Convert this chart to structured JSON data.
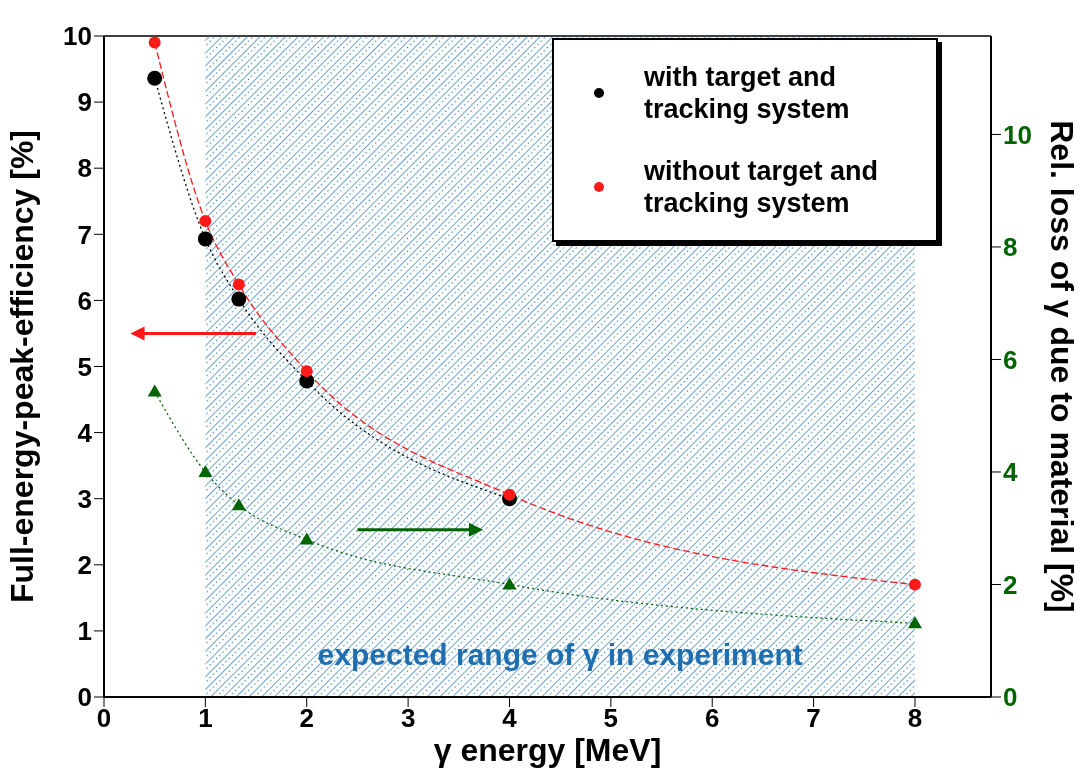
{
  "chart_data": {
    "type": "line",
    "xlabel": "γ energy [MeV]",
    "ylabel": "Full-energy-peak-efficiency [%]",
    "y2label": "Rel. loss of γ due to material [%]",
    "xlim": [
      0,
      8.75
    ],
    "xticks": [
      0,
      1,
      2,
      3,
      4,
      5,
      6,
      7,
      8
    ],
    "ylim": [
      0,
      10
    ],
    "yticks": [
      0,
      1,
      2,
      3,
      4,
      5,
      6,
      7,
      8,
      9,
      10
    ],
    "y2lim": [
      0,
      11.75
    ],
    "y2ticks": [
      0,
      2,
      4,
      6,
      8,
      10
    ],
    "x": [
      0.5,
      1,
      1.33,
      2,
      4,
      8
    ],
    "series": [
      {
        "name": "with target and tracking system",
        "color": "#000000",
        "values": [
          9.36,
          6.93,
          6.02,
          4.78,
          3.0,
          null
        ],
        "marker": "circle",
        "line_style": "dotted"
      },
      {
        "name": "without target and tracking system",
        "color": "#ff1a1a",
        "values": [
          9.9,
          7.2,
          6.24,
          4.93,
          3.06,
          1.7
        ],
        "marker": "circle",
        "line_style": "dashed"
      },
      {
        "color": "#006400",
        "values": [
          5.43,
          4.0,
          3.41,
          2.8,
          2.0,
          1.31
        ],
        "marker": "triangle",
        "line_style": "dotted",
        "axis": "y2"
      }
    ],
    "bands": [
      {
        "axis": "x",
        "from": 1,
        "to": 8,
        "label": "expected range of γ in experiment",
        "color": "#1f6fb0"
      }
    ],
    "grid": false,
    "legend": "top right"
  }
}
